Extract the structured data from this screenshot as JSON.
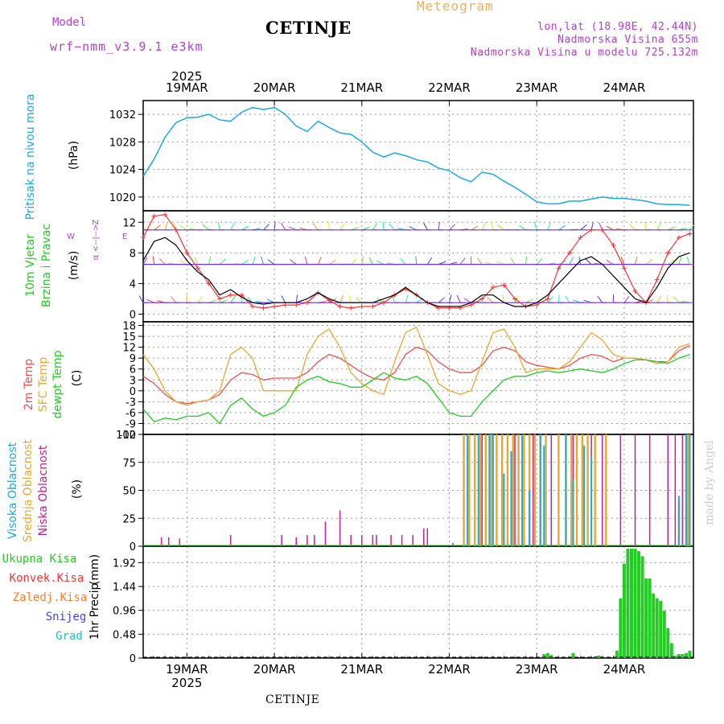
{
  "header": {
    "title": "CETINJE",
    "meteogram": "Meteogram",
    "model_label": "Model",
    "model_name": "wrf−nmm_v3.9.1  e3km",
    "coords": "lon,lat (18.98E, 42.44N)",
    "altitude": "Nadmorska Visina 655m",
    "model_altitude": "Nadmorska Visina u modelu 725.132m",
    "footer": "CETINJE",
    "watermark": "made by Angel"
  },
  "colors": {
    "pressure": "#1aa8e8",
    "wind_speed": "#000000",
    "wind_gust": "#ff3030",
    "temp_2m": "#f05050",
    "temp_sfc": "#e8a830",
    "temp_dew": "#22cc22",
    "cloud_high": "#1aa8e8",
    "cloud_mid": "#e8a830",
    "cloud_low": "#c0209a",
    "precip_total": "#22cc22"
  },
  "chart_data": [
    {
      "panel": "pressure",
      "type": "line",
      "ylabel_main": "Pritisak na nivou mora",
      "ylabel_unit": "(hPa)",
      "yticks": [
        1020,
        1024,
        1028,
        1032
      ],
      "ylim": [
        1018,
        1034
      ],
      "x_hours": [
        0,
        3,
        6,
        9,
        12,
        15,
        18,
        21,
        24,
        27,
        30,
        33,
        36,
        39,
        42,
        45,
        48,
        51,
        54,
        57,
        60,
        63,
        66,
        69,
        72,
        75,
        78,
        81,
        84,
        87,
        90,
        93,
        96,
        99,
        102,
        105,
        108,
        111,
        114,
        117,
        120,
        123,
        126,
        129,
        132,
        135,
        138,
        141,
        144,
        147,
        150
      ],
      "values": [
        1023.0,
        1025.5,
        1028.7,
        1030.8,
        1031.5,
        1031.6,
        1032.0,
        1031.2,
        1031.0,
        1032.3,
        1033.0,
        1032.7,
        1033.0,
        1032.0,
        1030.3,
        1029.5,
        1031.0,
        1030.1,
        1029.3,
        1029.1,
        1028.0,
        1026.5,
        1025.8,
        1026.4,
        1026.0,
        1025.4,
        1025.1,
        1024.2,
        1023.8,
        1022.8,
        1022.2,
        1023.6,
        1023.3,
        1022.3,
        1021.4,
        1020.4,
        1019.3,
        1019.0,
        1019.0,
        1019.4,
        1019.4,
        1019.7,
        1020.0,
        1019.8,
        1019.8,
        1019.6,
        1019.4,
        1019.0,
        1018.9,
        1018.9,
        1018.8
      ]
    },
    {
      "panel": "wind",
      "type": "line",
      "ylabel_main": "10m Vjetar",
      "ylabel_sub": "Brzina i Pravac",
      "ylabel_unit": "(m/s)",
      "compass": {
        "north": "Z",
        "west": "W",
        "east": "E",
        "south": "α",
        "arrows": "<--|-->"
      },
      "yticks": [
        0,
        4,
        8,
        12
      ],
      "ylim": [
        -1,
        13.5
      ],
      "x_hours": [
        0,
        3,
        6,
        9,
        12,
        15,
        18,
        21,
        24,
        27,
        30,
        33,
        36,
        39,
        42,
        45,
        48,
        51,
        54,
        57,
        60,
        63,
        66,
        69,
        72,
        75,
        78,
        81,
        84,
        87,
        90,
        93,
        96,
        99,
        102,
        105,
        108,
        111,
        114,
        117,
        120,
        123,
        126,
        129,
        132,
        135,
        138,
        141,
        144,
        147,
        150
      ],
      "series": [
        {
          "name": "10m speed",
          "values": [
            7.0,
            9.5,
            10.0,
            9.0,
            7.0,
            5.5,
            4.5,
            2.5,
            3.2,
            2.2,
            1.5,
            1.3,
            1.5,
            1.5,
            1.5,
            2.0,
            2.8,
            2.0,
            1.5,
            1.5,
            1.5,
            1.5,
            2.0,
            2.5,
            3.5,
            2.5,
            1.5,
            1.0,
            1.0,
            1.0,
            1.5,
            2.5,
            2.5,
            1.5,
            1.0,
            1.0,
            1.5,
            2.5,
            4.0,
            5.5,
            7.0,
            7.5,
            6.5,
            5.0,
            3.5,
            2.0,
            1.5,
            3.5,
            6.0,
            7.5,
            8.0
          ]
        },
        {
          "name": "gust",
          "values": [
            10.0,
            12.8,
            13.0,
            11.0,
            8.0,
            6.0,
            4.0,
            2.0,
            2.5,
            2.5,
            1.0,
            0.8,
            1.0,
            1.2,
            1.2,
            1.5,
            2.8,
            1.8,
            1.0,
            0.8,
            1.0,
            1.0,
            1.5,
            2.5,
            3.3,
            2.5,
            1.5,
            0.8,
            0.8,
            0.8,
            1.2,
            2.0,
            3.5,
            3.8,
            2.0,
            1.0,
            1.2,
            2.0,
            6.0,
            8.0,
            10.0,
            11.0,
            11.0,
            9.0,
            6.0,
            3.0,
            1.5,
            4.5,
            8.0,
            10.0,
            10.5
          ]
        }
      ]
    },
    {
      "panel": "temperature",
      "type": "line",
      "ylabel_lines": [
        "2m Temp",
        "SFC Temp",
        "dewpt Temp"
      ],
      "ylabel_unit": "(C)",
      "yticks": [
        -12,
        -9,
        -6,
        -3,
        0,
        3,
        6,
        9,
        12,
        15,
        18
      ],
      "ylim": [
        -12,
        19
      ],
      "x_hours": [
        0,
        3,
        6,
        9,
        12,
        15,
        18,
        21,
        24,
        27,
        30,
        33,
        36,
        39,
        42,
        45,
        48,
        51,
        54,
        57,
        60,
        63,
        66,
        69,
        72,
        75,
        78,
        81,
        84,
        87,
        90,
        93,
        96,
        99,
        102,
        105,
        108,
        111,
        114,
        117,
        120,
        123,
        126,
        129,
        132,
        135,
        138,
        141,
        144,
        147,
        150
      ],
      "series": [
        {
          "name": "2m Temp",
          "values": [
            4.0,
            2.0,
            -1.0,
            -3.0,
            -3.5,
            -3.0,
            -2.5,
            -1.0,
            3.0,
            5.0,
            4.5,
            3.0,
            3.5,
            3.5,
            3.5,
            5.0,
            8.0,
            10.0,
            9.0,
            7.0,
            5.0,
            3.5,
            3.0,
            5.0,
            10.0,
            12.0,
            11.0,
            8.0,
            6.0,
            5.0,
            5.0,
            7.0,
            11.0,
            12.0,
            11.0,
            8.0,
            7.0,
            6.5,
            6.0,
            7.0,
            9.0,
            10.0,
            9.5,
            8.0,
            9.0,
            9.0,
            8.5,
            8.0,
            8.0,
            11.0,
            12.5
          ]
        },
        {
          "name": "SFC Temp",
          "values": [
            10.0,
            6.0,
            0.0,
            -3.0,
            -4.0,
            -3.0,
            -2.5,
            0.0,
            10.0,
            12.0,
            9.0,
            0.0,
            0.0,
            0.0,
            0.0,
            10.0,
            15.0,
            17.0,
            12.0,
            5.0,
            2.0,
            0.0,
            -1.0,
            8.0,
            16.0,
            17.5,
            10.0,
            2.0,
            0.0,
            -1.0,
            0.0,
            8.0,
            16.0,
            17.0,
            12.0,
            5.0,
            6.0,
            6.0,
            6.0,
            8.0,
            12.0,
            16.0,
            14.0,
            10.0,
            9.0,
            9.0,
            8.5,
            7.5,
            8.0,
            12.0,
            13.0
          ]
        },
        {
          "name": "dewpt Temp",
          "values": [
            -5.0,
            -8.5,
            -7.5,
            -8.0,
            -7.0,
            -7.0,
            -6.0,
            -9.0,
            -4.0,
            -2.0,
            -5.0,
            -7.0,
            -6.0,
            -4.0,
            1.0,
            3.0,
            4.0,
            2.5,
            2.0,
            1.0,
            1.0,
            3.0,
            5.0,
            3.5,
            3.0,
            4.0,
            2.0,
            -2.0,
            -6.0,
            -7.0,
            -7.0,
            -3.0,
            0.0,
            3.0,
            4.0,
            4.0,
            5.0,
            5.5,
            5.0,
            5.5,
            6.0,
            5.5,
            5.0,
            6.0,
            7.5,
            8.5,
            8.5,
            8.0,
            7.5,
            9.0,
            10.0
          ]
        }
      ]
    },
    {
      "panel": "clouds",
      "type": "bar",
      "ylabel_lines": [
        "Visoka Oblacnost",
        "Srednja Oblacnost",
        "Niska Oblacnost"
      ],
      "ylabel_unit": "(%)",
      "yticks": [
        0,
        25,
        50,
        75,
        100
      ],
      "ylim": [
        0,
        100
      ],
      "low": [
        {
          "h": 5,
          "v": 8
        },
        {
          "h": 7,
          "v": 8
        },
        {
          "h": 10,
          "v": 7
        },
        {
          "h": 24,
          "v": 10
        },
        {
          "h": 38,
          "v": 10
        },
        {
          "h": 42,
          "v": 8
        },
        {
          "h": 45,
          "v": 10
        },
        {
          "h": 47,
          "v": 10
        },
        {
          "h": 50,
          "v": 22
        },
        {
          "h": 54,
          "v": 32
        },
        {
          "h": 57,
          "v": 10
        },
        {
          "h": 60,
          "v": 10
        },
        {
          "h": 63,
          "v": 10
        },
        {
          "h": 64,
          "v": 10
        },
        {
          "h": 68,
          "v": 10
        },
        {
          "h": 71,
          "v": 10
        },
        {
          "h": 74,
          "v": 10
        },
        {
          "h": 77,
          "v": 16
        },
        {
          "h": 78,
          "v": 16
        },
        {
          "h": 85,
          "v": 3
        },
        {
          "h": 89,
          "v": 100
        },
        {
          "h": 91,
          "v": 100
        },
        {
          "h": 93,
          "v": 100
        },
        {
          "h": 95,
          "v": 100
        },
        {
          "h": 100,
          "v": 100
        },
        {
          "h": 102,
          "v": 100
        },
        {
          "h": 107,
          "v": 100
        },
        {
          "h": 112,
          "v": 100
        },
        {
          "h": 118,
          "v": 100
        },
        {
          "h": 123,
          "v": 100
        },
        {
          "h": 126,
          "v": 100
        },
        {
          "h": 131,
          "v": 100
        },
        {
          "h": 135,
          "v": 100
        },
        {
          "h": 139,
          "v": 100
        },
        {
          "h": 144,
          "v": 100
        },
        {
          "h": 146,
          "v": 100
        },
        {
          "h": 148,
          "v": 100
        },
        {
          "h": 149,
          "v": 100
        }
      ],
      "mid": [
        {
          "h": 88,
          "v": 100
        },
        {
          "h": 89.5,
          "v": 100
        },
        {
          "h": 91,
          "v": 100
        },
        {
          "h": 92.5,
          "v": 100
        },
        {
          "h": 94,
          "v": 100
        },
        {
          "h": 95.5,
          "v": 100
        },
        {
          "h": 97,
          "v": 100
        },
        {
          "h": 98.5,
          "v": 100
        },
        {
          "h": 100,
          "v": 100
        },
        {
          "h": 101.5,
          "v": 100
        },
        {
          "h": 103,
          "v": 100
        },
        {
          "h": 104.5,
          "v": 100
        },
        {
          "h": 106,
          "v": 100
        },
        {
          "h": 107.5,
          "v": 100
        },
        {
          "h": 109,
          "v": 100
        },
        {
          "h": 110.5,
          "v": 100
        },
        {
          "h": 114,
          "v": 100
        },
        {
          "h": 116,
          "v": 100
        },
        {
          "h": 117.5,
          "v": 100
        },
        {
          "h": 119,
          "v": 100
        },
        {
          "h": 120.5,
          "v": 100
        },
        {
          "h": 122,
          "v": 100
        },
        {
          "h": 124,
          "v": 100
        },
        {
          "h": 127,
          "v": 100
        },
        {
          "h": 147,
          "v": 40
        },
        {
          "h": 149.5,
          "v": 100
        }
      ],
      "high": [
        {
          "h": 89,
          "v": 100
        },
        {
          "h": 92,
          "v": 100
        },
        {
          "h": 95,
          "v": 100
        },
        {
          "h": 96,
          "v": 100
        },
        {
          "h": 99,
          "v": 65
        },
        {
          "h": 101,
          "v": 85
        },
        {
          "h": 104,
          "v": 100
        },
        {
          "h": 106,
          "v": 50
        },
        {
          "h": 109,
          "v": 100
        },
        {
          "h": 110,
          "v": 90
        },
        {
          "h": 116,
          "v": 100
        },
        {
          "h": 118,
          "v": 60
        },
        {
          "h": 121,
          "v": 90
        },
        {
          "h": 123,
          "v": 80
        },
        {
          "h": 147,
          "v": 45
        },
        {
          "h": 149,
          "v": 100
        },
        {
          "h": 150,
          "v": 100
        }
      ]
    },
    {
      "panel": "precipitation",
      "type": "bar",
      "legend": [
        "Ukupna Kisa",
        "Konvek.Kisa",
        "Zaledj.Kisa",
        "Snijeg",
        "Grad"
      ],
      "ylabel_main": "1hr Precip",
      "ylabel_unit": "(mm)",
      "yticks": [
        0,
        0.48,
        0.96,
        1.44,
        1.92
      ],
      "ylim": [
        0,
        2.25
      ],
      "total": [
        {
          "h": 110,
          "v": 0.08
        },
        {
          "h": 111,
          "v": 0.1
        },
        {
          "h": 112,
          "v": 0.06
        },
        {
          "h": 118,
          "v": 0.1
        },
        {
          "h": 124,
          "v": 0.03
        },
        {
          "h": 125,
          "v": 0.05
        },
        {
          "h": 130,
          "v": 0.15
        },
        {
          "h": 131,
          "v": 1.2
        },
        {
          "h": 132,
          "v": 1.9
        },
        {
          "h": 133,
          "v": 2.2
        },
        {
          "h": 134,
          "v": 2.2
        },
        {
          "h": 135,
          "v": 2.2
        },
        {
          "h": 136,
          "v": 2.15
        },
        {
          "h": 137,
          "v": 2.05
        },
        {
          "h": 138,
          "v": 1.6
        },
        {
          "h": 139,
          "v": 1.6
        },
        {
          "h": 140,
          "v": 1.3
        },
        {
          "h": 141,
          "v": 1.2
        },
        {
          "h": 142,
          "v": 1.15
        },
        {
          "h": 143,
          "v": 0.95
        },
        {
          "h": 144,
          "v": 0.6
        },
        {
          "h": 145,
          "v": 0.3
        },
        {
          "h": 146,
          "v": 0.05
        },
        {
          "h": 147,
          "v": 0.08
        },
        {
          "h": 148,
          "v": 0.08
        },
        {
          "h": 149,
          "v": 0.1
        },
        {
          "h": 150,
          "v": 0.15
        }
      ]
    }
  ],
  "axis": {
    "year": "2025",
    "days": [
      {
        "label": "19MAR",
        "h": 12
      },
      {
        "label": "20MAR",
        "h": 36
      },
      {
        "label": "21MAR",
        "h": 60
      },
      {
        "label": "22MAR",
        "h": 84
      },
      {
        "label": "23MAR",
        "h": 108
      },
      {
        "label": "24MAR",
        "h": 132
      }
    ],
    "hours_total": 151
  }
}
